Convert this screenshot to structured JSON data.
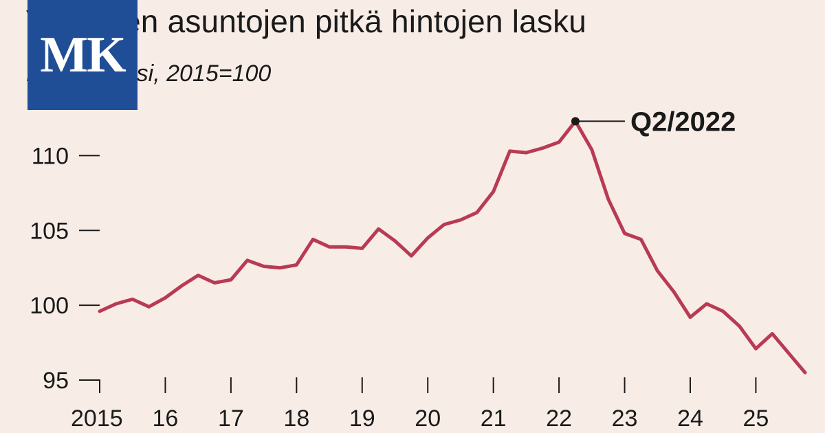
{
  "header": {
    "title": "Vanhojen asuntojen pitkä hintojen lasku",
    "subtitle": "Hintaindeksi, 2015=100"
  },
  "logo": {
    "text": "MK",
    "color": "#1f4e96"
  },
  "colors": {
    "line": "#b93a54",
    "background": "#f7ede6",
    "text": "#1a1a1a"
  },
  "chart_data": {
    "type": "line",
    "title": "Vanhojen asuntojen pitkä hintojen lasku",
    "subtitle": "Hintaindeksi, 2015=100",
    "xlabel": "",
    "ylabel": "",
    "xlim": [
      2015.0,
      2025.75
    ],
    "ylim": [
      95,
      112.5
    ],
    "yticks": [
      95,
      100,
      105,
      110
    ],
    "ytick_labels": [
      "95",
      "100",
      "105",
      "110"
    ],
    "xticks": [
      2015,
      2016,
      2017,
      2018,
      2019,
      2020,
      2021,
      2022,
      2023,
      2024,
      2025
    ],
    "xtick_labels": [
      "2015",
      "16",
      "17",
      "18",
      "19",
      "20",
      "21",
      "22",
      "23",
      "24",
      "25"
    ],
    "grid": false,
    "legend": "none",
    "series": [
      {
        "x": [
          2015.0,
          2015.25,
          2015.5,
          2015.75,
          2016.0,
          2016.25,
          2016.5,
          2016.75,
          2017.0,
          2017.25,
          2017.5,
          2017.75,
          2018.0,
          2018.25,
          2018.5,
          2018.75,
          2019.0,
          2019.25,
          2019.5,
          2019.75,
          2020.0,
          2020.25,
          2020.5,
          2020.75,
          2021.0,
          2021.25,
          2021.5,
          2021.75,
          2022.0,
          2022.25,
          2022.5,
          2022.75,
          2023.0,
          2023.25,
          2023.5,
          2023.75,
          2024.0,
          2024.25,
          2024.5,
          2024.75,
          2025.0,
          2025.25,
          2025.5,
          2025.75
        ],
        "values": [
          99.6,
          100.1,
          100.4,
          99.9,
          100.5,
          101.3,
          102.0,
          101.5,
          101.7,
          103.0,
          102.6,
          102.5,
          102.7,
          104.4,
          103.9,
          103.9,
          103.8,
          105.1,
          104.3,
          103.3,
          104.5,
          105.4,
          105.7,
          106.2,
          107.6,
          110.3,
          110.2,
          110.5,
          110.9,
          112.3,
          110.4,
          107.1,
          104.8,
          104.4,
          102.3,
          100.9,
          99.2,
          100.1,
          99.6,
          98.6,
          97.1,
          98.1,
          96.8,
          95.5
        ]
      }
    ],
    "annotations": [
      {
        "label": "Q2/2022",
        "x": 2022.25,
        "y": 112.3
      }
    ]
  }
}
